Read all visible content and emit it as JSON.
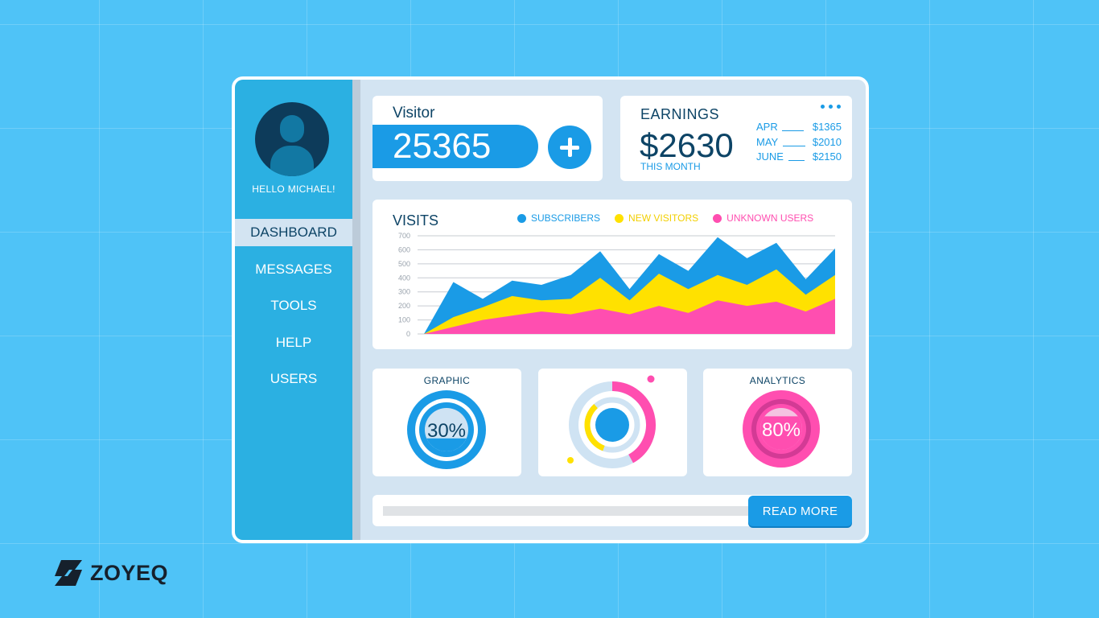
{
  "sidebar": {
    "greeting": "HELLO MICHAEL!",
    "items": [
      {
        "label": "DASHBOARD",
        "active": true
      },
      {
        "label": "MESSAGES"
      },
      {
        "label": "TOOLS"
      },
      {
        "label": "HELP"
      },
      {
        "label": "USERS"
      }
    ]
  },
  "visitor": {
    "label": "Visitor",
    "count": "25365"
  },
  "earnings": {
    "title": "EARNINGS",
    "amount": "$2630",
    "period": "THIS MONTH",
    "rows": [
      {
        "month": "APR",
        "value": "$1365"
      },
      {
        "month": "MAY",
        "value": "$2010"
      },
      {
        "month": "JUNE",
        "value": "$2150"
      }
    ]
  },
  "visits": {
    "title": "VISITS",
    "legend": [
      {
        "label": "SUBSCRIBERS",
        "color": "#1a9be6"
      },
      {
        "label": "NEW VISITORS",
        "color": "#ffe100"
      },
      {
        "label": "UNKNOWN USERS",
        "color": "#ff4eb0"
      }
    ]
  },
  "chart_data": {
    "type": "area",
    "title": "VISITS",
    "ylim": [
      0,
      700
    ],
    "yticks": [
      "700",
      "600",
      "500",
      "400",
      "300",
      "200",
      "100",
      "0"
    ],
    "grid": true,
    "legend_position": "top",
    "x": [
      0,
      1,
      2,
      3,
      4,
      5,
      6,
      7,
      8,
      9,
      10,
      11,
      12,
      13,
      14
    ],
    "series": [
      {
        "name": "SUBSCRIBERS",
        "color": "#1a9be6",
        "values": [
          0,
          370,
          250,
          380,
          350,
          420,
          590,
          320,
          570,
          450,
          690,
          540,
          650,
          390,
          610
        ]
      },
      {
        "name": "NEW VISITORS",
        "color": "#ffe100",
        "values": [
          0,
          120,
          190,
          270,
          240,
          250,
          400,
          240,
          430,
          320,
          420,
          350,
          460,
          280,
          420
        ]
      },
      {
        "name": "UNKNOWN USERS",
        "color": "#ff4eb0",
        "values": [
          0,
          50,
          100,
          130,
          160,
          140,
          180,
          140,
          200,
          150,
          240,
          200,
          230,
          160,
          250
        ]
      }
    ]
  },
  "widgets": {
    "graphic": {
      "title": "GRAPHIC",
      "percent": "30%",
      "value": 0.3
    },
    "ring": {
      "outer": 0.42,
      "inner": 0.33
    },
    "analytics": {
      "title": "ANALYTICS",
      "percent": "80%",
      "value": 0.8
    }
  },
  "read_more": {
    "label": "READ MORE",
    "progress": 0.0
  },
  "brand": {
    "name": "ZOYEQ"
  },
  "colors": {
    "background": "#4fc3f7",
    "sidebar": "#2bb0e2",
    "accent": "#1a9be6",
    "navy": "#0d4466",
    "pink": "#ff4eb0",
    "yellow": "#ffe100",
    "panel": "#d3e4f2"
  }
}
